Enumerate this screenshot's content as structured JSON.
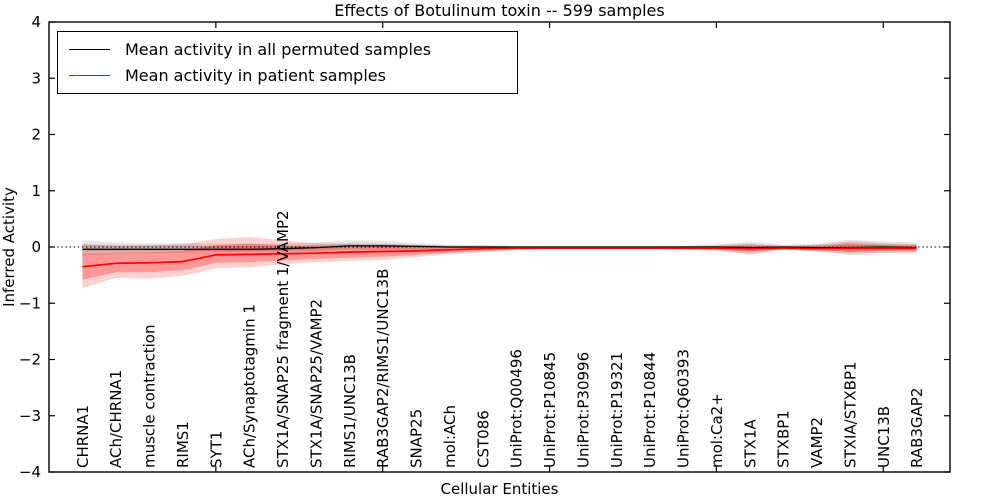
{
  "title": "Effects of Botulinum toxin -- 599 samples",
  "legend": {
    "items": [
      {
        "label": "Mean activity in all permuted samples",
        "color": "#000000"
      },
      {
        "label": "Mean activity in patient samples",
        "color": "#ff0000"
      }
    ]
  },
  "chart_data": {
    "type": "line",
    "title": "Effects of Botulinum toxin -- 599 samples",
    "xlabel": "Cellular Entities",
    "ylabel": "Inferred Activity",
    "ylim": [
      -4,
      4
    ],
    "yticks": [
      -4,
      -3,
      -2,
      -1,
      0,
      1,
      2,
      3,
      4
    ],
    "xticks_major": [
      5,
      10,
      15,
      20,
      25
    ],
    "grid": false,
    "legend_position": "upper left",
    "zero_line": {
      "y": 0,
      "style": "dotted",
      "color": "#000000"
    },
    "categories": [
      "CHRNA1",
      "ACh/CHRNA1",
      "muscle contraction",
      "RIMS1",
      "SYT1",
      "ACh/Synaptotagmin 1",
      "STX1A/SNAP25 fragment 1/VAMP2",
      "STX1A/SNAP25/VAMP2",
      "RIMS1/UNC13B",
      "RAB3GAP2/RIMS1/UNC13B",
      "SNAP25",
      "mol:ACh",
      "CST086",
      "UniProt:Q00496",
      "UniProt:P10845",
      "UniProt:P30996",
      "UniProt:P19321",
      "UniProt:P10844",
      "UniProt:Q60393",
      "mol:Ca2+",
      "STX1A",
      "STXBP1",
      "VAMP2",
      "STXIA/STXBP1",
      "UNC13B",
      "RAB3GAP2"
    ],
    "series": [
      {
        "name": "Mean activity in all permuted samples",
        "color": "#000000",
        "band_color": "#000000",
        "band_outer_alpha": 0.1,
        "band_inner_alpha": 0.13,
        "values": [
          -0.04,
          -0.04,
          -0.04,
          -0.04,
          -0.04,
          -0.04,
          -0.03,
          -0.01,
          0.02,
          0.02,
          0.01,
          0.0,
          0.0,
          0.0,
          0.0,
          0.0,
          0.0,
          0.0,
          0.0,
          0.0,
          -0.01,
          0.0,
          -0.01,
          -0.01,
          0.0,
          -0.01
        ],
        "band_outer_upper": [
          0.12,
          0.08,
          0.07,
          0.07,
          0.06,
          0.06,
          0.06,
          0.08,
          0.12,
          0.11,
          0.07,
          0.04,
          0.03,
          0.02,
          0.02,
          0.02,
          0.02,
          0.02,
          0.02,
          0.04,
          0.1,
          0.04,
          0.06,
          0.13,
          0.1,
          0.08
        ],
        "band_outer_lower": [
          -0.16,
          -0.12,
          -0.11,
          -0.1,
          -0.09,
          -0.09,
          -0.08,
          -0.07,
          -0.05,
          -0.05,
          -0.05,
          -0.04,
          -0.03,
          -0.02,
          -0.02,
          -0.02,
          -0.02,
          -0.02,
          -0.03,
          -0.05,
          -0.14,
          -0.05,
          -0.07,
          -0.15,
          -0.12,
          -0.12
        ],
        "band_inner_upper": [
          0.05,
          0.03,
          0.03,
          0.03,
          0.02,
          0.02,
          0.02,
          0.04,
          0.07,
          0.06,
          0.04,
          0.02,
          0.02,
          0.01,
          0.01,
          0.01,
          0.01,
          0.01,
          0.01,
          0.02,
          0.05,
          0.02,
          0.03,
          0.07,
          0.05,
          0.04
        ],
        "band_inner_lower": [
          -0.1,
          -0.08,
          -0.08,
          -0.07,
          -0.07,
          -0.07,
          -0.06,
          -0.04,
          -0.02,
          -0.02,
          -0.03,
          -0.02,
          -0.02,
          -0.01,
          -0.01,
          -0.01,
          -0.01,
          -0.01,
          -0.02,
          -0.03,
          -0.08,
          -0.03,
          -0.04,
          -0.09,
          -0.07,
          -0.07
        ]
      },
      {
        "name": "Mean activity in patient samples",
        "color": "#ff0000",
        "band_color": "#ff0000",
        "band_outer_alpha": 0.18,
        "band_inner_alpha": 0.28,
        "values": [
          -0.35,
          -0.29,
          -0.28,
          -0.26,
          -0.14,
          -0.13,
          -0.12,
          -0.11,
          -0.09,
          -0.08,
          -0.07,
          -0.05,
          -0.03,
          -0.02,
          -0.02,
          -0.02,
          -0.02,
          -0.02,
          -0.02,
          -0.02,
          -0.03,
          -0.02,
          -0.03,
          -0.02,
          -0.02,
          -0.02
        ],
        "band_outer_upper": [
          0.05,
          0.02,
          0.03,
          0.05,
          0.14,
          0.18,
          0.12,
          0.07,
          0.05,
          0.05,
          0.03,
          0.02,
          0.02,
          0.01,
          0.01,
          0.01,
          0.01,
          0.01,
          0.02,
          0.03,
          0.06,
          0.02,
          0.04,
          0.1,
          0.07,
          0.05
        ],
        "band_outer_lower": [
          -0.73,
          -0.55,
          -0.56,
          -0.51,
          -0.38,
          -0.36,
          -0.31,
          -0.27,
          -0.25,
          -0.23,
          -0.18,
          -0.13,
          -0.09,
          -0.06,
          -0.04,
          -0.04,
          -0.04,
          -0.04,
          -0.05,
          -0.07,
          -0.12,
          -0.05,
          -0.08,
          -0.12,
          -0.1,
          -0.09
        ],
        "band_inner_upper": [
          -0.11,
          -0.1,
          -0.09,
          -0.07,
          0.03,
          0.06,
          0.03,
          0.0,
          -0.01,
          0.0,
          -0.01,
          -0.01,
          0.0,
          0.0,
          0.0,
          0.0,
          0.0,
          0.0,
          0.0,
          0.01,
          0.02,
          0.0,
          0.01,
          0.05,
          0.03,
          0.02
        ],
        "band_inner_lower": [
          -0.58,
          -0.45,
          -0.45,
          -0.41,
          -0.28,
          -0.27,
          -0.24,
          -0.21,
          -0.19,
          -0.17,
          -0.14,
          -0.1,
          -0.07,
          -0.04,
          -0.03,
          -0.03,
          -0.03,
          -0.03,
          -0.04,
          -0.05,
          -0.08,
          -0.04,
          -0.06,
          -0.08,
          -0.07,
          -0.06
        ]
      }
    ]
  }
}
